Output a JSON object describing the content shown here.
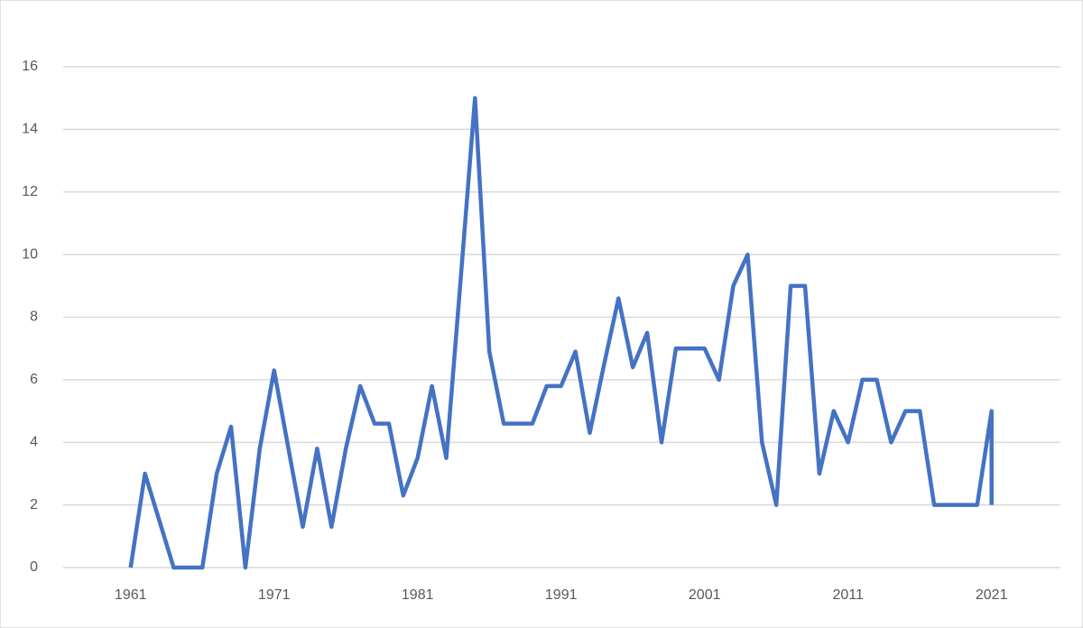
{
  "chart_data": {
    "type": "line",
    "x": [
      1961,
      1962,
      1963,
      1964,
      1965,
      1966,
      1967,
      1968,
      1969,
      1970,
      1971,
      1972,
      1973,
      1974,
      1975,
      1976,
      1977,
      1978,
      1979,
      1980,
      1981,
      1982,
      1983,
      1984,
      1985,
      1986,
      1987,
      1988,
      1989,
      1990,
      1991,
      1992,
      1993,
      1994,
      1995,
      1996,
      1997,
      1998,
      1999,
      2000,
      2001,
      2002,
      2003,
      2004,
      2005,
      2006,
      2007,
      2008,
      2009,
      2010,
      2011,
      2012,
      2013,
      2014,
      2015,
      2016,
      2017,
      2018,
      2019,
      2020,
      2021,
      2021
    ],
    "series": [
      {
        "color": "#4472c4",
        "values": [
          0,
          3,
          1.5,
          0,
          0,
          0,
          3,
          4.5,
          0,
          3.8,
          6.3,
          3.8,
          1.3,
          3.8,
          1.3,
          3.8,
          5.8,
          4.6,
          4.6,
          2.3,
          3.5,
          5.8,
          3.5,
          9.2,
          15,
          6.9,
          4.6,
          4.6,
          4.6,
          5.8,
          5.8,
          6.9,
          4.3,
          6.5,
          8.6,
          6.4,
          7.5,
          4,
          7,
          7,
          7,
          6,
          9,
          10,
          4,
          2,
          9,
          9,
          3,
          5,
          4,
          6,
          6,
          4,
          5,
          5,
          2,
          2,
          2,
          2,
          5,
          2
        ]
      }
    ],
    "xlim": [
      1956.3,
      2025.8
    ],
    "xticks": [
      1961,
      1971,
      1981,
      1991,
      2001,
      2011,
      2021
    ],
    "ylim": [
      0,
      16
    ],
    "yticks": [
      0,
      2,
      4,
      6,
      8,
      10,
      12,
      14,
      16
    ],
    "grid": true
  }
}
